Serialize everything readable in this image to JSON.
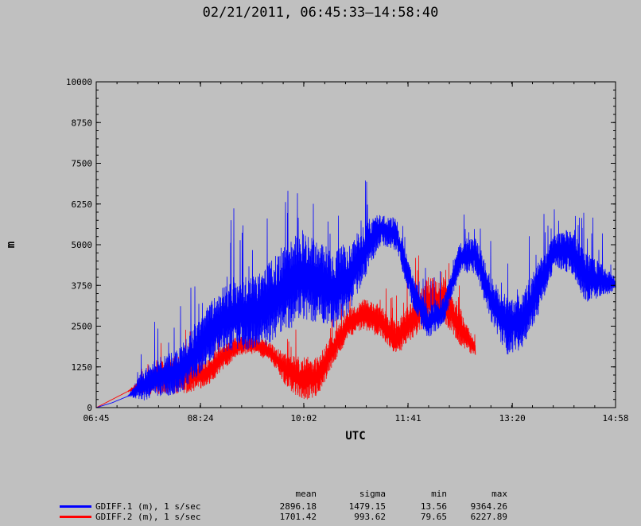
{
  "title": "02/21/2011, 06:45:33–14:58:40",
  "chart_data": {
    "type": "line",
    "xlabel": "UTC",
    "ylabel": "m",
    "x_ticks": [
      "06:45",
      "08:24",
      "10:02",
      "11:41",
      "13:20",
      "14:58"
    ],
    "y_ticks": [
      "0",
      "1250",
      "2500",
      "3750",
      "5000",
      "6250",
      "7500",
      "8750",
      "10000"
    ],
    "ylim": [
      0,
      10000
    ],
    "xlim": [
      "06:45",
      "14:58"
    ],
    "grid": false,
    "series": [
      {
        "name": "GDIFF.1 (m), 1 s/sec",
        "color": "#0000ff",
        "x": [
          "06:45",
          "07:00",
          "07:15",
          "07:30",
          "07:45",
          "08:00",
          "08:15",
          "08:30",
          "08:45",
          "09:00",
          "09:15",
          "09:30",
          "09:45",
          "10:00",
          "10:15",
          "10:30",
          "10:45",
          "11:00",
          "11:15",
          "11:30",
          "11:45",
          "12:00",
          "12:15",
          "12:30",
          "12:45",
          "13:00",
          "13:15",
          "13:30",
          "13:45",
          "14:00",
          "14:15",
          "14:30",
          "14:45",
          "14:58"
        ],
        "values": [
          0,
          150,
          350,
          700,
          950,
          1050,
          1500,
          2200,
          2700,
          2900,
          2900,
          3200,
          3700,
          4100,
          3900,
          3600,
          4000,
          4800,
          5500,
          5300,
          3600,
          2600,
          3000,
          4600,
          4700,
          3300,
          2500,
          2700,
          3700,
          4800,
          4800,
          4000,
          3900,
          3800
        ],
        "spread": [
          0,
          0,
          0,
          500,
          600,
          700,
          800,
          900,
          1000,
          1100,
          1200,
          1300,
          1400,
          1400,
          1300,
          1200,
          1100,
          800,
          500,
          500,
          500,
          500,
          400,
          500,
          600,
          700,
          900,
          900,
          800,
          500,
          700,
          800,
          500,
          200
        ]
      },
      {
        "name": "GDIFF.2 (m), 1 s/sec",
        "color": "#ff0000",
        "x": [
          "06:45",
          "07:00",
          "07:15",
          "07:30",
          "07:45",
          "08:00",
          "08:15",
          "08:30",
          "08:45",
          "09:00",
          "09:15",
          "09:30",
          "09:45",
          "10:00",
          "10:15",
          "10:30",
          "10:45",
          "11:00",
          "11:15",
          "11:30",
          "11:45",
          "12:00",
          "12:15",
          "12:30",
          "12:45"
        ],
        "values": [
          0,
          250,
          500,
          700,
          900,
          1000,
          950,
          1050,
          1550,
          1900,
          1950,
          1700,
          1150,
          850,
          950,
          1800,
          2600,
          2850,
          2650,
          2100,
          2700,
          3300,
          3300,
          2500,
          1750
        ],
        "spread": [
          0,
          0,
          0,
          300,
          500,
          600,
          500,
          400,
          400,
          300,
          300,
          300,
          500,
          700,
          600,
          500,
          400,
          500,
          500,
          500,
          600,
          700,
          700,
          600,
          200
        ]
      }
    ],
    "stats_headers": [
      "mean",
      "sigma",
      "min",
      "max"
    ],
    "stats": [
      [
        "2896.18",
        "1479.15",
        "13.56",
        "9364.26"
      ],
      [
        "1701.42",
        "993.62",
        "79.65",
        "6227.89"
      ]
    ]
  }
}
